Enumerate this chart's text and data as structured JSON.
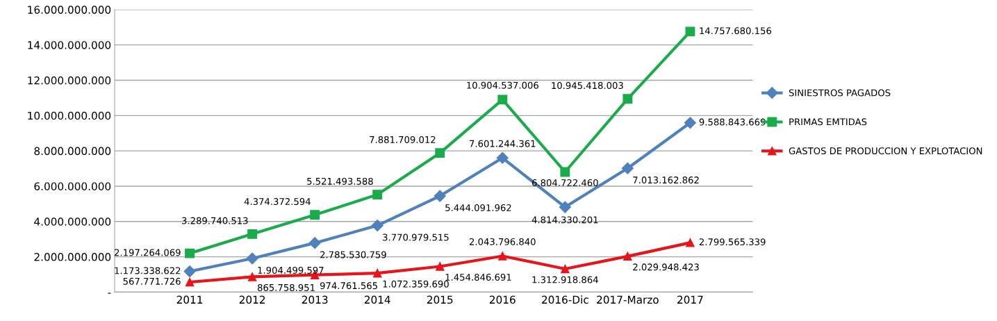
{
  "chart_data": {
    "type": "line",
    "categories": [
      "2011",
      "2012",
      "2013",
      "2014",
      "2015",
      "2016",
      "2016-Dic",
      "2017-Marzo",
      "2017"
    ],
    "ylim": [
      0,
      16000000000
    ],
    "yticks": [
      {
        "value": 0,
        "label": "-"
      },
      {
        "value": 2000000000,
        "label": "2.000.000.000"
      },
      {
        "value": 4000000000,
        "label": "4.000.000.000"
      },
      {
        "value": 6000000000,
        "label": "6.000.000.000"
      },
      {
        "value": 8000000000,
        "label": "8.000.000.000"
      },
      {
        "value": 10000000000,
        "label": "10.000.000.000"
      },
      {
        "value": 12000000000,
        "label": "12.000.000.000"
      },
      {
        "value": 14000000000,
        "label": "14.000.000.000"
      },
      {
        "value": 16000000000,
        "label": "16.000.000.000"
      }
    ],
    "grid": "y",
    "legend": "right",
    "series": [
      {
        "name": "SINIESTROS PAGADOS",
        "color": "#4f81bd",
        "marker": "diamond",
        "values": [
          1173338622,
          1904499597,
          2785530759,
          3770979515,
          5444091962,
          7601244361,
          4814330201,
          7013162862,
          9588843669
        ],
        "value_labels": [
          "1.173.338.622",
          "1.904.499.597",
          "2.785.530.759",
          "3.770.979.515",
          "5.444.091.962",
          "7.601.244.361",
          "4.814.330.201",
          "7.013.162.862",
          "9.588.843.669"
        ]
      },
      {
        "name": "PRIMAS EMTIDAS",
        "color": "#1aab4b",
        "marker": "square",
        "values": [
          2197264069,
          3289740513,
          4374372594,
          5521493588,
          7881709012,
          10904537006,
          6804722460,
          10945418003,
          14757680156
        ],
        "value_labels": [
          "2.197.264.069",
          "3.289.740.513",
          "4.374.372.594",
          "5.521.493.588",
          "7.881.709.012",
          "10.904.537.006",
          "6.804.722.460",
          "10.945.418.003",
          "14.757.680.156"
        ]
      },
      {
        "name": "GASTOS DE PRODUCCION Y EXPLOTACION",
        "color": "#e8141b",
        "marker": "triangle",
        "values": [
          567771726,
          865758951,
          974761565,
          1072359690,
          1454846691,
          2043796840,
          1312918864,
          2029948423,
          2799565339
        ],
        "value_labels": [
          "567.771.726",
          "865.758.951",
          "974.761.565",
          "1.072.359.690",
          "1.454.846.691",
          "2.043.796.840",
          "1.312.918.864",
          "2.029.948.423",
          "2.799.565.339"
        ]
      }
    ]
  }
}
